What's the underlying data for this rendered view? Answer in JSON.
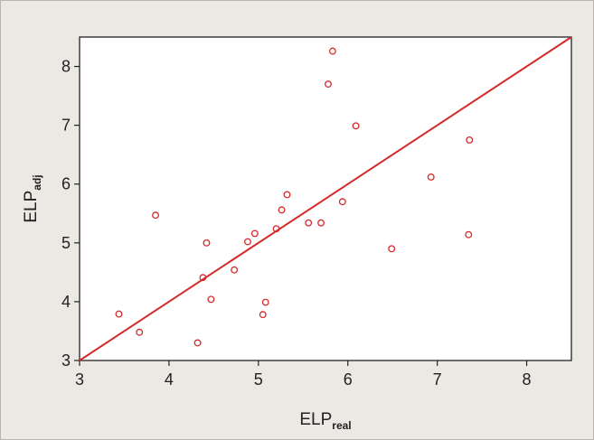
{
  "chart_data": {
    "type": "scatter",
    "xlabel": {
      "main": "ELP",
      "sub": "real"
    },
    "ylabel": {
      "main": "ELP",
      "sub": "adj"
    },
    "xlim": [
      3,
      8.5
    ],
    "ylim": [
      3,
      8.5
    ],
    "x_ticks": [
      3,
      4,
      5,
      6,
      7,
      8
    ],
    "y_ticks": [
      3,
      4,
      5,
      6,
      7,
      8
    ],
    "grid": false,
    "marker_color": "#d42a2a",
    "line_color": "#d42a2a",
    "reference_line": {
      "from": [
        3,
        3
      ],
      "to": [
        8.5,
        8.5
      ]
    },
    "points": [
      {
        "x": 3.44,
        "y": 3.79
      },
      {
        "x": 3.67,
        "y": 3.48
      },
      {
        "x": 3.85,
        "y": 5.47
      },
      {
        "x": 4.32,
        "y": 3.3
      },
      {
        "x": 4.38,
        "y": 4.41
      },
      {
        "x": 4.42,
        "y": 5.0
      },
      {
        "x": 4.47,
        "y": 4.04
      },
      {
        "x": 4.73,
        "y": 4.54
      },
      {
        "x": 4.88,
        "y": 5.02
      },
      {
        "x": 4.96,
        "y": 5.16
      },
      {
        "x": 5.05,
        "y": 3.78
      },
      {
        "x": 5.08,
        "y": 3.99
      },
      {
        "x": 5.2,
        "y": 5.24
      },
      {
        "x": 5.26,
        "y": 5.56
      },
      {
        "x": 5.32,
        "y": 5.82
      },
      {
        "x": 5.56,
        "y": 5.34
      },
      {
        "x": 5.7,
        "y": 5.34
      },
      {
        "x": 5.78,
        "y": 7.7
      },
      {
        "x": 5.83,
        "y": 8.26
      },
      {
        "x": 5.94,
        "y": 5.7
      },
      {
        "x": 6.09,
        "y": 6.99
      },
      {
        "x": 6.49,
        "y": 4.9
      },
      {
        "x": 6.93,
        "y": 6.12
      },
      {
        "x": 7.35,
        "y": 5.14
      },
      {
        "x": 7.36,
        "y": 6.75
      }
    ]
  }
}
